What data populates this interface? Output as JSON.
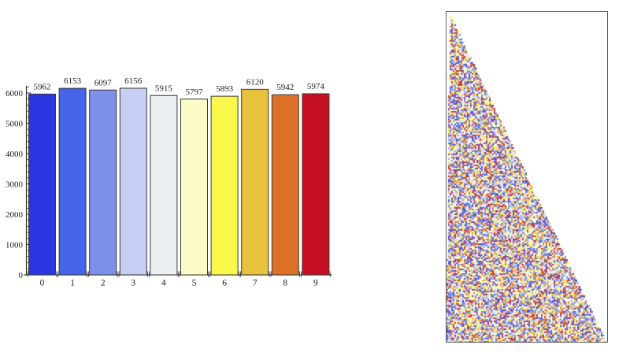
{
  "page": {
    "background": "#ffffff"
  },
  "chart_data": {
    "type": "bar",
    "title": "",
    "xlabel": "",
    "ylabel": "",
    "categories": [
      "0",
      "1",
      "2",
      "3",
      "4",
      "5",
      "6",
      "7",
      "8",
      "9"
    ],
    "values": [
      5962,
      6153,
      6097,
      6156,
      5915,
      5797,
      5893,
      6120,
      5942,
      5974
    ],
    "value_labels": [
      "5962",
      "6153",
      "6097",
      "6156",
      "5915",
      "5797",
      "5893",
      "6120",
      "5942",
      "5974"
    ],
    "bar_colors": [
      "#2B35E0",
      "#4565E8",
      "#7D8FE8",
      "#C7CEF5",
      "#EDF0F2",
      "#FAFBC5",
      "#F7F84B",
      "#E8C23C",
      "#DD7128",
      "#C60E22"
    ],
    "bar_edge_color": "#3a3a3a",
    "axis_color": "#333333",
    "label_color": "#1a1a1a",
    "ylim": [
      0,
      6200
    ],
    "yticks": [
      0,
      1000,
      2000,
      3000,
      4000,
      5000,
      6000
    ],
    "ytick_labels": [
      "0",
      "1000",
      "2000",
      "3000",
      "4000",
      "5000",
      "6000"
    ],
    "minor_tick_step": 200,
    "grid": false,
    "legend": null
  },
  "noise_panel": {
    "description": "triangular raster of randomly colored digit cells",
    "frame_color": "#5a5a5a",
    "background": "#ffffff",
    "palette": [
      "#2B35E0",
      "#4565E8",
      "#7D8FE8",
      "#C7CEF5",
      "#EDF0F2",
      "#FAFBC5",
      "#F7F84B",
      "#E8C23C",
      "#DD7128",
      "#C60E22"
    ],
    "cell_size": 2,
    "triangle": {
      "apex": [
        4,
        2
      ],
      "bottom_left": [
        0,
        419
      ],
      "bottom_right": [
        202,
        417
      ]
    }
  }
}
